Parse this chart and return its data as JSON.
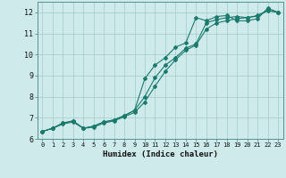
{
  "title": "",
  "xlabel": "Humidex (Indice chaleur)",
  "ylabel": "",
  "x_ticks": [
    0,
    1,
    2,
    3,
    4,
    5,
    6,
    7,
    8,
    9,
    10,
    11,
    12,
    13,
    14,
    15,
    16,
    17,
    18,
    19,
    20,
    21,
    22,
    23
  ],
  "xlim": [
    -0.5,
    23.5
  ],
  "ylim": [
    6.0,
    12.5
  ],
  "y_ticks": [
    6,
    7,
    8,
    9,
    10,
    11,
    12
  ],
  "background_color": "#ceeaea",
  "grid_color": "#aacece",
  "line_color": "#1a7a6e",
  "series": [
    {
      "x": [
        0,
        1,
        2,
        3,
        4,
        5,
        6,
        7,
        8,
        9,
        10,
        11,
        12,
        13,
        14,
        15,
        16,
        17,
        18,
        19,
        20,
        21,
        22,
        23
      ],
      "y": [
        6.35,
        6.5,
        6.75,
        6.85,
        6.5,
        6.6,
        6.8,
        6.9,
        7.1,
        7.35,
        8.85,
        9.5,
        9.85,
        10.35,
        10.55,
        11.75,
        11.6,
        11.8,
        11.85,
        11.6,
        11.6,
        11.7,
        12.2,
        12.0
      ]
    },
    {
      "x": [
        0,
        1,
        2,
        3,
        4,
        5,
        6,
        7,
        8,
        9,
        10,
        11,
        12,
        13,
        14,
        15,
        16,
        17,
        18,
        19,
        20,
        21,
        22,
        23
      ],
      "y": [
        6.35,
        6.5,
        6.75,
        6.85,
        6.5,
        6.6,
        6.8,
        6.9,
        7.1,
        7.35,
        8.0,
        8.9,
        9.5,
        9.85,
        10.3,
        10.5,
        11.5,
        11.65,
        11.75,
        11.8,
        11.75,
        11.85,
        12.1,
        12.0
      ]
    },
    {
      "x": [
        0,
        1,
        2,
        3,
        4,
        5,
        6,
        7,
        8,
        9,
        10,
        11,
        12,
        13,
        14,
        15,
        16,
        17,
        18,
        19,
        20,
        21,
        22,
        23
      ],
      "y": [
        6.35,
        6.5,
        6.7,
        6.8,
        6.5,
        6.55,
        6.75,
        6.85,
        7.05,
        7.25,
        7.75,
        8.5,
        9.2,
        9.75,
        10.2,
        10.45,
        11.2,
        11.5,
        11.6,
        11.7,
        11.75,
        11.82,
        12.08,
        12.0
      ]
    }
  ]
}
